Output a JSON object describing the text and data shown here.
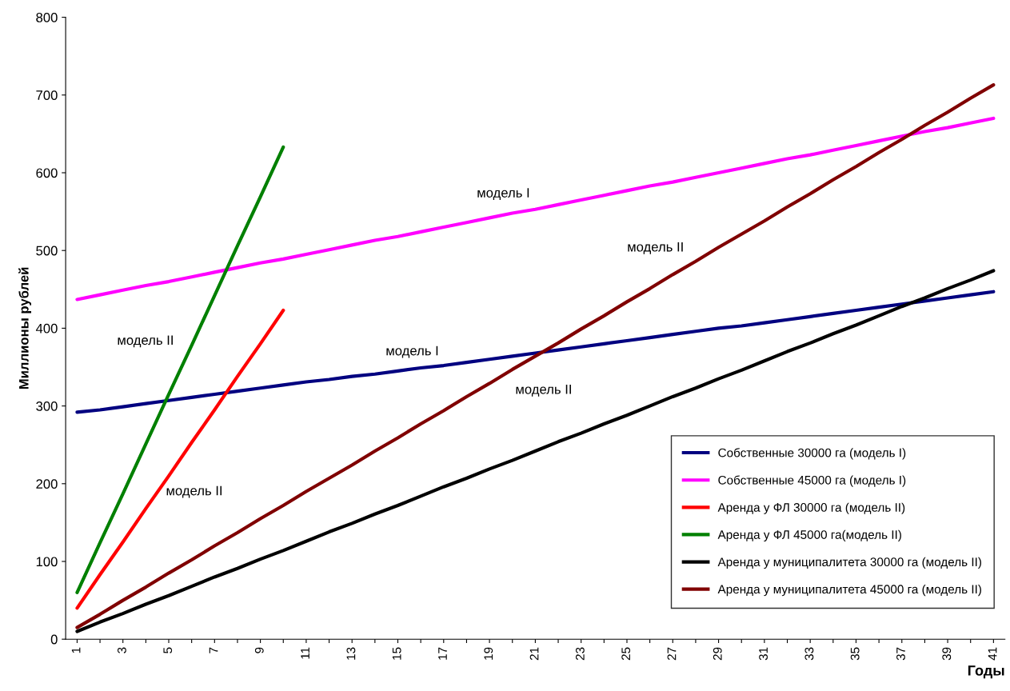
{
  "chart_data": {
    "type": "line",
    "xlabel": "Годы",
    "ylabel": "Миллионы рублей",
    "categories": [
      "1",
      null,
      "3",
      null,
      "5",
      null,
      "7",
      null,
      "9",
      null,
      "11",
      null,
      "13",
      null,
      "15",
      null,
      "17",
      null,
      "19",
      null,
      "21",
      null,
      "23",
      null,
      "25",
      null,
      "27",
      null,
      "29",
      null,
      "31",
      null,
      "33",
      null,
      "35",
      null,
      "37",
      null,
      "39",
      null,
      "41"
    ],
    "ylim": [
      0,
      800
    ],
    "yticks": [
      0,
      100,
      200,
      300,
      400,
      500,
      600,
      700,
      800
    ],
    "grid": false,
    "legend": "bottom right",
    "marker": "none",
    "line_style": "solid",
    "series": [
      {
        "name": "Собственные 30000 га (модель I)",
        "color": "#000080",
        "values": [
          292,
          295,
          299,
          303,
          307,
          311,
          315,
          319,
          323,
          327,
          331,
          334,
          338,
          341,
          345,
          349,
          352,
          356,
          360,
          364,
          368,
          372,
          376,
          380,
          384,
          388,
          392,
          396,
          400,
          403,
          407,
          411,
          415,
          419,
          423,
          427,
          431,
          435,
          439,
          443,
          447
        ]
      },
      {
        "name": "Собственные 45000 га (модель I)",
        "color": "#ff00ff",
        "values": [
          437,
          443,
          449,
          455,
          460,
          466,
          472,
          478,
          484,
          489,
          495,
          501,
          507,
          513,
          518,
          524,
          530,
          536,
          542,
          548,
          553,
          559,
          565,
          571,
          577,
          583,
          588,
          594,
          600,
          606,
          612,
          618,
          623,
          629,
          635,
          641,
          647,
          653,
          658,
          664,
          670
        ]
      },
      {
        "name": "Аренда у ФЛ 30000 га (модель II)",
        "color": "#ff0000",
        "values": [
          40,
          83,
          125,
          168,
          210,
          253,
          295,
          338,
          380,
          423,
          null,
          null,
          null,
          null,
          null,
          null,
          null,
          null,
          null,
          null,
          null,
          null,
          null,
          null,
          null,
          null,
          null,
          null,
          null,
          null,
          null,
          null,
          null,
          null,
          null,
          null,
          null,
          null,
          null,
          null,
          null
        ]
      },
      {
        "name": "Аренда у ФЛ 45000 га(модель II)",
        "color": "#008000",
        "values": [
          60,
          124,
          187,
          251,
          315,
          378,
          442,
          506,
          569,
          633,
          null,
          null,
          null,
          null,
          null,
          null,
          null,
          null,
          null,
          null,
          null,
          null,
          null,
          null,
          null,
          null,
          null,
          null,
          null,
          null,
          null,
          null,
          null,
          null,
          null,
          null,
          null,
          null,
          null,
          null,
          null
        ]
      },
      {
        "name": "Аренда у муниципалитета 30000 га (модель II)",
        "color": "#000000",
        "values": [
          10,
          22,
          33,
          45,
          56,
          68,
          80,
          91,
          103,
          114,
          126,
          138,
          149,
          161,
          172,
          184,
          196,
          207,
          219,
          230,
          242,
          254,
          265,
          277,
          288,
          300,
          312,
          323,
          335,
          346,
          358,
          370,
          381,
          393,
          404,
          416,
          428,
          439,
          451,
          462,
          474
        ]
      },
      {
        "name": "Аренда у муниципалитета 45000 га (модель II)",
        "color": "#800000",
        "values": [
          15,
          32,
          50,
          67,
          85,
          102,
          120,
          137,
          155,
          172,
          190,
          207,
          224,
          242,
          259,
          277,
          294,
          312,
          329,
          347,
          364,
          381,
          399,
          416,
          434,
          451,
          469,
          486,
          504,
          521,
          538,
          556,
          573,
          591,
          608,
          626,
          643,
          661,
          678,
          696,
          713
        ]
      }
    ],
    "annotations": [
      "модель I",
      "модель II",
      "модель II",
      "модель I",
      "модель II",
      "модель II"
    ]
  }
}
